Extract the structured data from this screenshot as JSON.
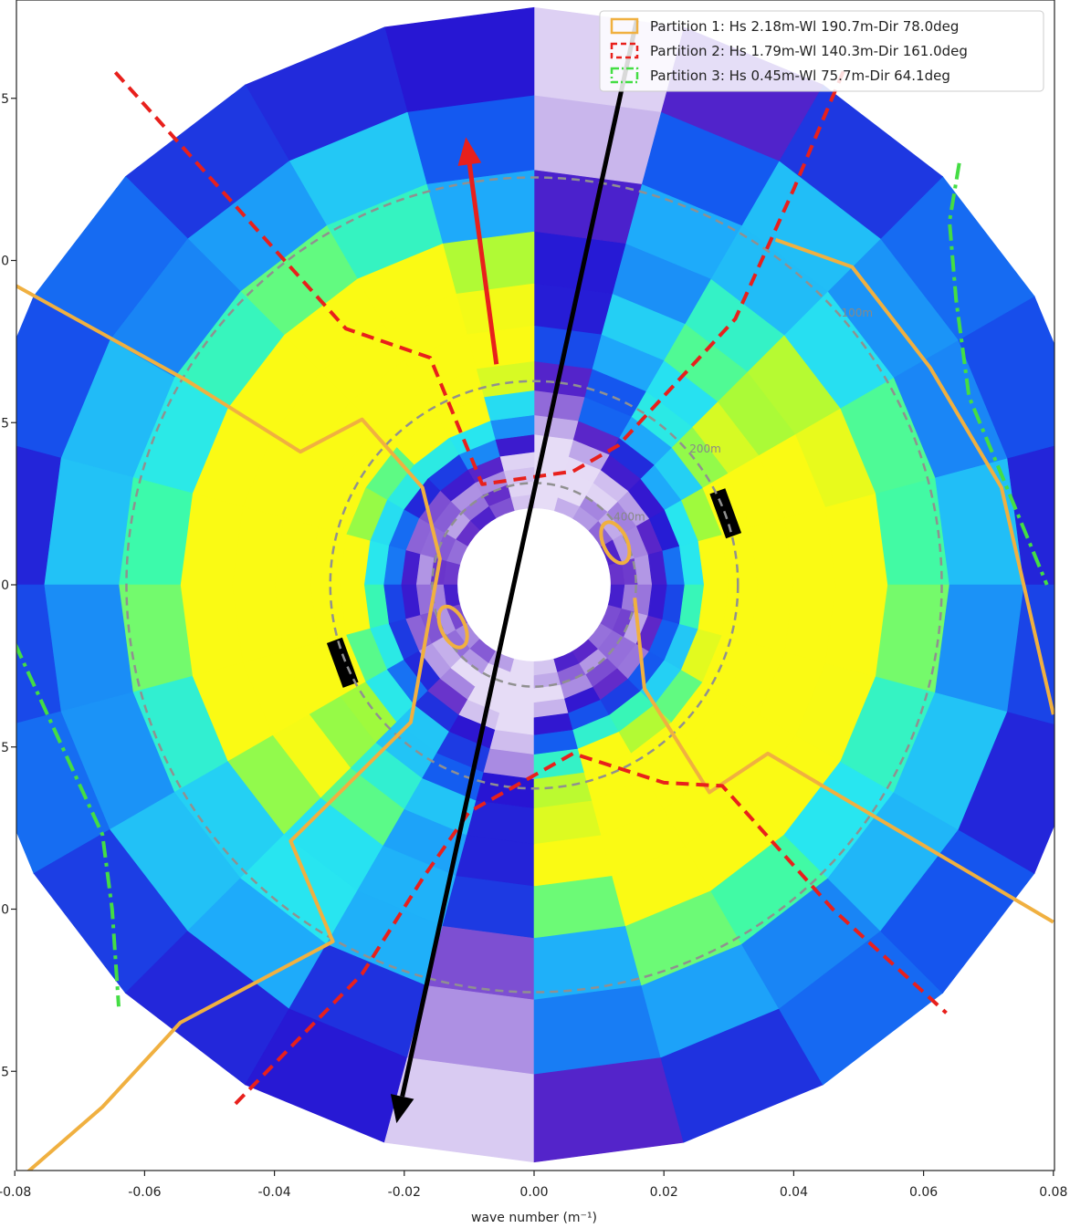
{
  "chart_data": {
    "type": "heatmap",
    "subtype": "polar wave spectrum with partitions",
    "xlabel": "wave number (m⁻¹)",
    "ylabel": "",
    "xlim": [
      -0.08,
      0.08
    ],
    "ylim": [
      -0.09,
      0.09
    ],
    "x_ticks": [
      "-0.08",
      "-0.06",
      "-0.04",
      "-0.02",
      "0.00",
      "0.02",
      "0.04",
      "0.06",
      "0.08"
    ],
    "y_ticks": [
      "5",
      "0",
      "5",
      "0",
      "5",
      "0",
      "5"
    ],
    "radial_bins_k": [
      0.0118,
      0.014,
      0.016,
      0.0182,
      0.0205,
      0.0232,
      0.0262,
      0.03,
      0.0345,
      0.04,
      0.0465,
      0.0545,
      0.064,
      0.0755,
      0.089
    ],
    "n_direction_bins": 24,
    "ring_labels": [
      {
        "text": "100m",
        "k": 0.0628
      },
      {
        "text": "200m",
        "k": 0.0314
      },
      {
        "text": "400m",
        "k": 0.0157
      }
    ],
    "legend": [
      {
        "label": "Partition 1: Hs 2.18m-Wl 190.7m-Dir 78.0deg",
        "color": "#f0b040",
        "style": "solid"
      },
      {
        "label": "Partition 2: Hs 1.79m-Wl 140.3m-Dir 161.0deg",
        "color": "#e8201c",
        "style": "dashed"
      },
      {
        "label": "Partition 3: Hs 0.45m-Wl 75.7m-Dir 64.1deg",
        "color": "#44dd44",
        "style": "dashdot"
      }
    ],
    "legend_position": "top-right",
    "arrows": [
      {
        "name": "red-direction-arrow",
        "color": "#e8201c",
        "from": [
          -0.0058,
          0.034
        ],
        "to": [
          -0.0105,
          0.069
        ]
      },
      {
        "name": "black-direction-arrow",
        "color": "#000000",
        "from": [
          0.0158,
          0.087
        ],
        "to": [
          -0.0212,
          -0.083
        ]
      }
    ],
    "partition_outlines": [
      {
        "partition": 1,
        "points": [
          [
            -0.08,
            0.0462
          ],
          [
            -0.0535,
            0.0315
          ],
          [
            -0.036,
            0.0205
          ],
          [
            -0.0265,
            0.0255
          ],
          [
            -0.0172,
            0.015
          ],
          [
            -0.0145,
            0.004
          ],
          [
            -0.019,
            -0.0212
          ],
          [
            -0.0375,
            -0.0395
          ],
          [
            -0.031,
            -0.055
          ],
          [
            -0.0545,
            -0.0675
          ],
          [
            -0.0665,
            -0.0805
          ],
          [
            -0.078,
            -0.0905
          ]
        ]
      },
      {
        "partition": 1,
        "points": [
          [
            0.0372,
            0.0532
          ],
          [
            0.049,
            0.049
          ],
          [
            0.061,
            0.0335
          ],
          [
            0.072,
            0.015
          ],
          [
            0.08,
            -0.02
          ]
        ]
      },
      {
        "partition": 1,
        "points": [
          [
            0.0155,
            -0.002
          ],
          [
            0.017,
            -0.016
          ],
          [
            0.027,
            -0.032
          ],
          [
            0.036,
            -0.026
          ],
          [
            0.08,
            -0.052
          ]
        ]
      },
      {
        "partition": 2,
        "points": [
          [
            -0.0645,
            0.079
          ],
          [
            -0.029,
            0.0395
          ],
          [
            -0.016,
            0.035
          ],
          [
            -0.008,
            0.0155
          ],
          [
            0.006,
            0.0175
          ],
          [
            0.013,
            0.0215
          ],
          [
            0.031,
            0.041
          ],
          [
            0.04,
            0.061
          ],
          [
            0.048,
            0.08
          ]
        ]
      },
      {
        "partition": 2,
        "points": [
          [
            -0.046,
            -0.08
          ],
          [
            -0.0265,
            -0.06
          ],
          [
            -0.017,
            -0.045
          ],
          [
            -0.01,
            -0.035
          ],
          [
            0.006,
            -0.026
          ],
          [
            0.02,
            -0.0305
          ],
          [
            0.029,
            -0.031
          ],
          [
            0.046,
            -0.05
          ],
          [
            0.0635,
            -0.066
          ]
        ]
      },
      {
        "partition": 3,
        "points": [
          [
            0.0655,
            0.065
          ],
          [
            0.064,
            0.056
          ],
          [
            0.065,
            0.044
          ],
          [
            0.067,
            0.029
          ],
          [
            0.072,
            0.017
          ],
          [
            0.079,
            0.0
          ]
        ]
      },
      {
        "partition": 3,
        "points": [
          [
            -0.08,
            -0.009
          ],
          [
            -0.072,
            -0.0265
          ],
          [
            -0.0665,
            -0.0385
          ],
          [
            -0.065,
            -0.05
          ],
          [
            -0.064,
            -0.065
          ]
        ]
      }
    ]
  }
}
